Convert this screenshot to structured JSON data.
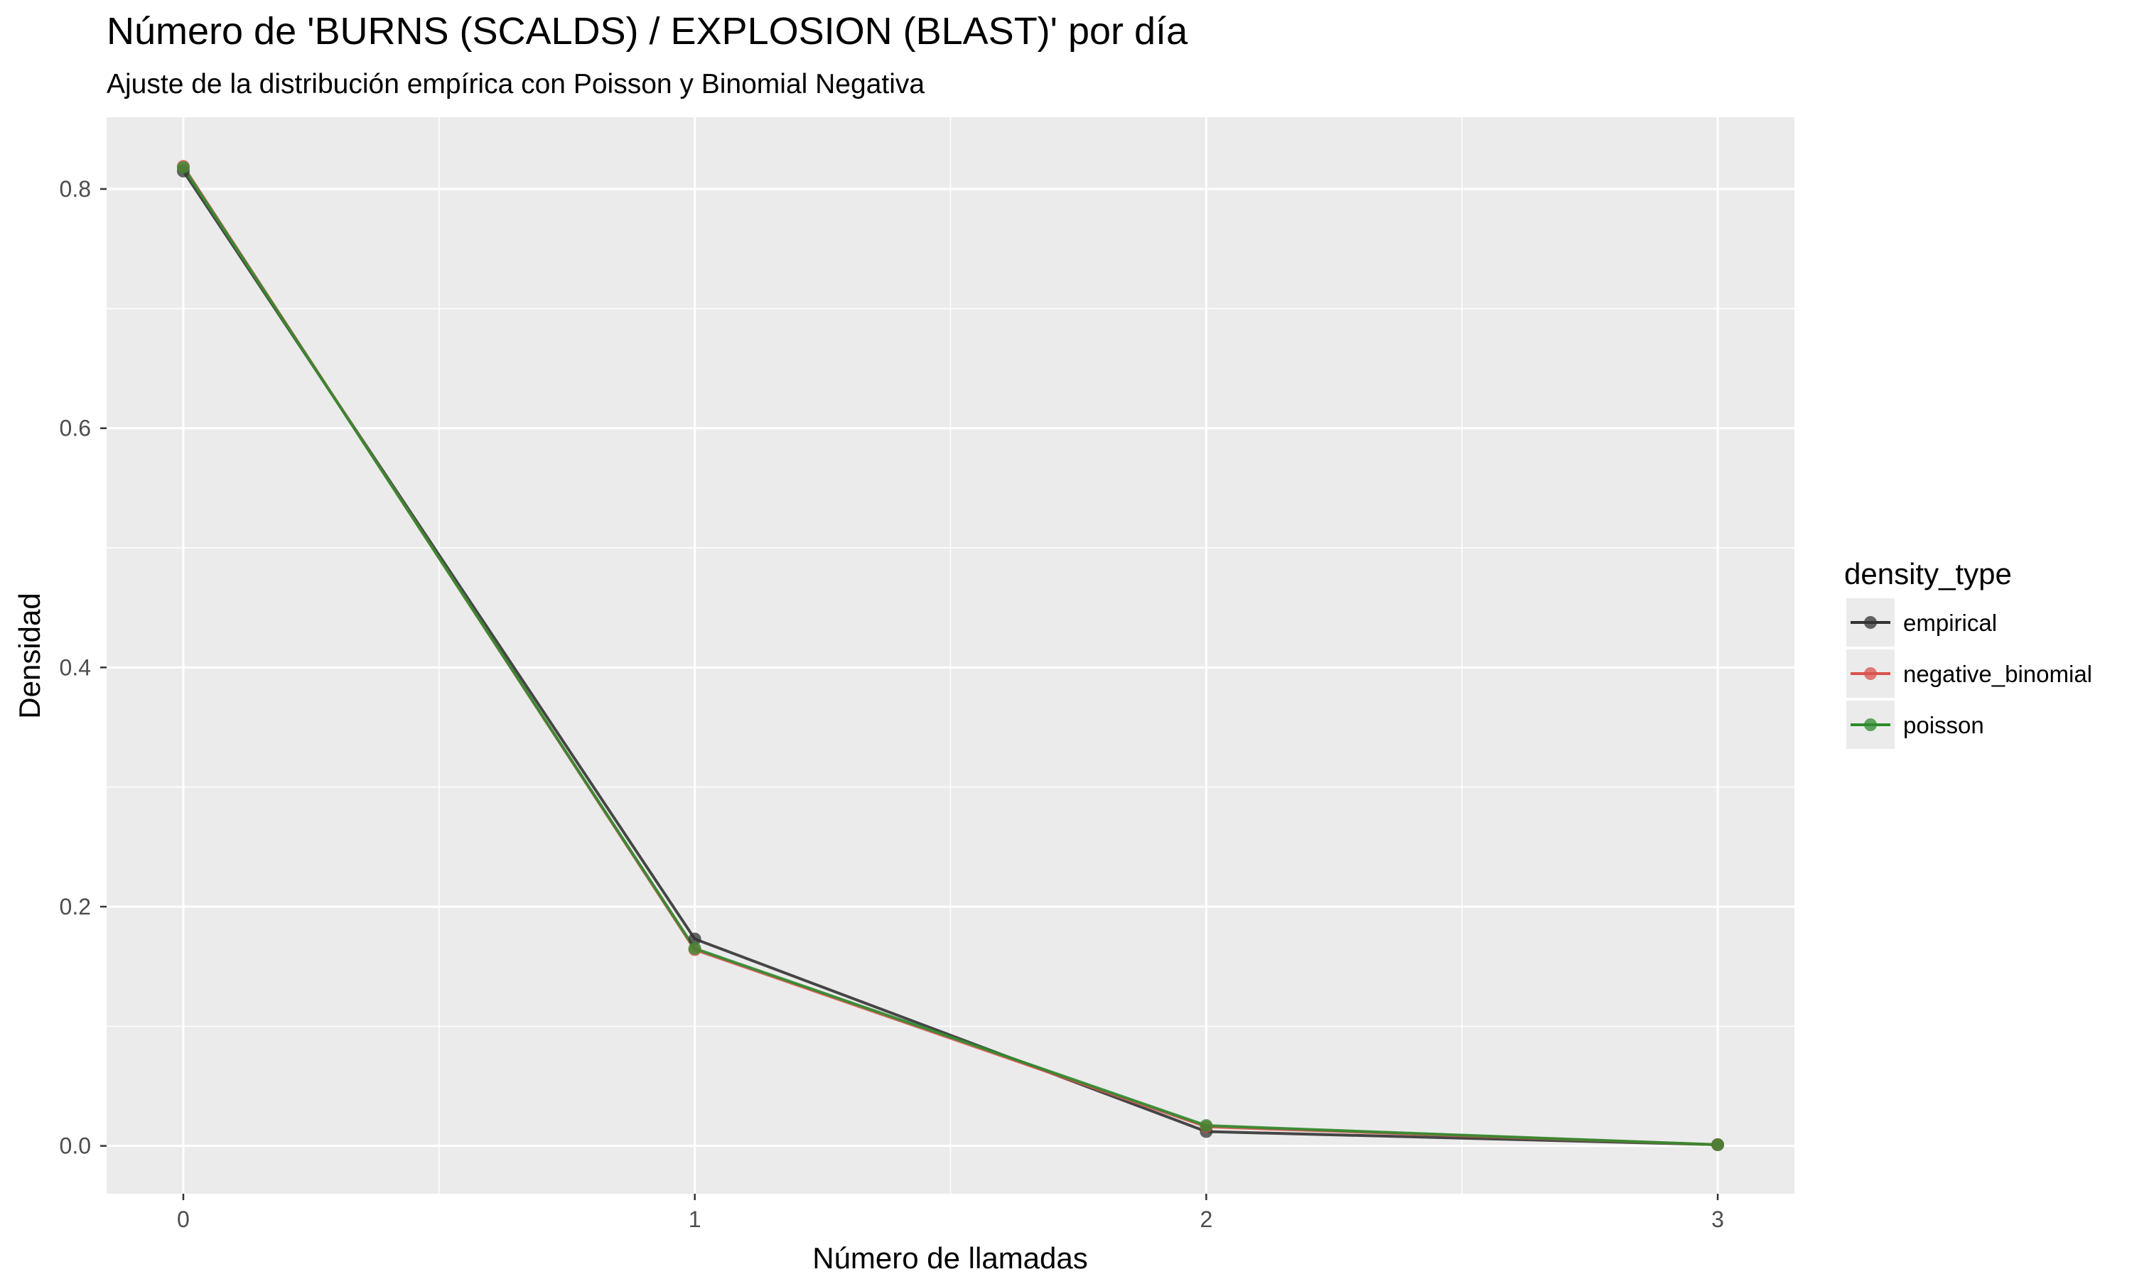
{
  "chart_data": {
    "type": "line",
    "title": "Número de 'BURNS (SCALDS) / EXPLOSION (BLAST)' por día",
    "subtitle": "Ajuste de la distribución empírica con Poisson y Binomial Negativa",
    "xlabel": "Número de llamadas",
    "ylabel": "Densidad",
    "x": [
      0,
      1,
      2,
      3
    ],
    "x_ticks": [
      "0",
      "1",
      "2",
      "3"
    ],
    "y_ticks": [
      "0.0",
      "0.2",
      "0.4",
      "0.6",
      "0.8"
    ],
    "xlim": [
      -0.15,
      3.15
    ],
    "ylim": [
      -0.04,
      0.86
    ],
    "grid": true,
    "legend": {
      "title": "density_type",
      "position": "right"
    },
    "series": [
      {
        "name": "empirical",
        "color": "#333333",
        "values": [
          0.815,
          0.173,
          0.012,
          0.001
        ]
      },
      {
        "name": "negative_binomial",
        "color": "#d9534f",
        "values": [
          0.819,
          0.164,
          0.016,
          0.001
        ]
      },
      {
        "name": "poisson",
        "color": "#2e8b2e",
        "values": [
          0.818,
          0.165,
          0.017,
          0.001
        ]
      }
    ]
  }
}
